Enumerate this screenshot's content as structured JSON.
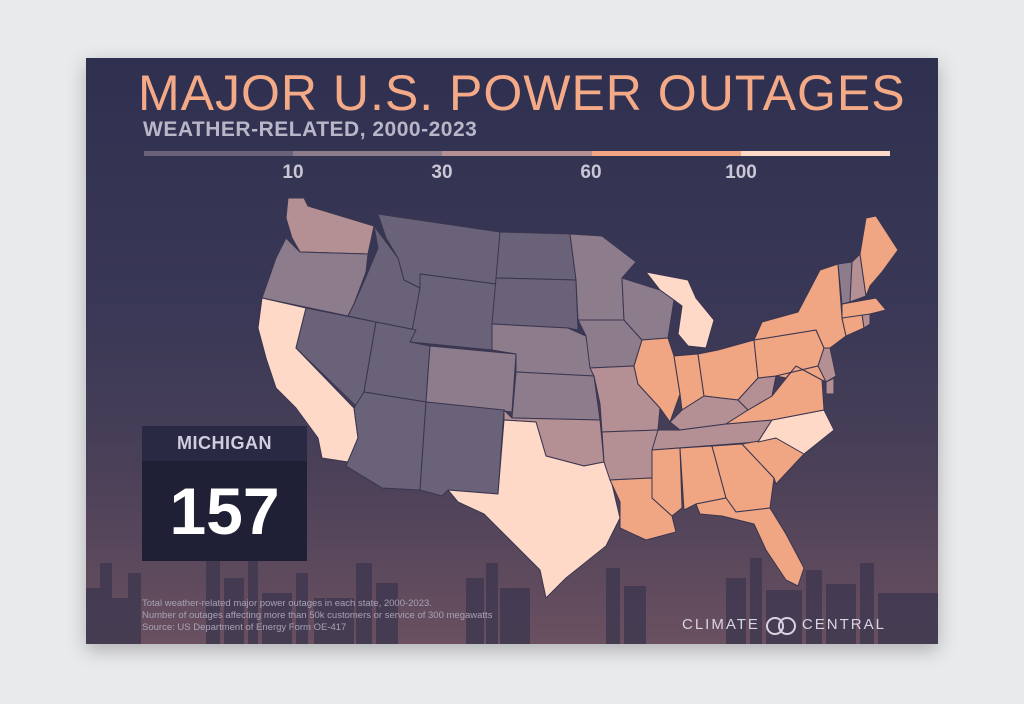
{
  "title": "MAJOR U.S. POWER OUTAGES",
  "subtitle": "WEATHER-RELATED, 2000-2023",
  "legend": {
    "ticks": [
      "10",
      "30",
      "60",
      "100"
    ],
    "colors": [
      "#6a6278",
      "#8d7c8c",
      "#b48f93",
      "#f0a583",
      "#ffd9c8"
    ]
  },
  "callout": {
    "state": "MICHIGAN",
    "value": "157"
  },
  "footnotes": [
    "Total weather-related major power outages in each state, 2000-2023.",
    "Number of outages affecting more than 50k customers or service of 300 megawatts",
    "Source: US Department of Energy Form OE-417"
  ],
  "brand": {
    "left": "CLIMATE",
    "right": "CENTRAL"
  },
  "states": [
    {
      "id": "WA",
      "tier": 3
    },
    {
      "id": "OR",
      "tier": 2
    },
    {
      "id": "CA",
      "tier": 5
    },
    {
      "id": "NV",
      "tier": 1
    },
    {
      "id": "ID",
      "tier": 1
    },
    {
      "id": "MT",
      "tier": 1
    },
    {
      "id": "WY",
      "tier": 1
    },
    {
      "id": "UT",
      "tier": 1
    },
    {
      "id": "AZ",
      "tier": 1
    },
    {
      "id": "CO",
      "tier": 2
    },
    {
      "id": "NM",
      "tier": 1
    },
    {
      "id": "ND",
      "tier": 1
    },
    {
      "id": "SD",
      "tier": 1
    },
    {
      "id": "NE",
      "tier": 2
    },
    {
      "id": "KS",
      "tier": 2
    },
    {
      "id": "OK",
      "tier": 3
    },
    {
      "id": "TX",
      "tier": 5
    },
    {
      "id": "MN",
      "tier": 2
    },
    {
      "id": "IA",
      "tier": 2
    },
    {
      "id": "MO",
      "tier": 3
    },
    {
      "id": "AR",
      "tier": 3
    },
    {
      "id": "LA",
      "tier": 4
    },
    {
      "id": "WI",
      "tier": 2
    },
    {
      "id": "MI",
      "tier": 5
    },
    {
      "id": "IL",
      "tier": 4
    },
    {
      "id": "IN",
      "tier": 4
    },
    {
      "id": "OH",
      "tier": 4
    },
    {
      "id": "KY",
      "tier": 3
    },
    {
      "id": "TN",
      "tier": 3
    },
    {
      "id": "MS",
      "tier": 4
    },
    {
      "id": "AL",
      "tier": 4
    },
    {
      "id": "GA",
      "tier": 4
    },
    {
      "id": "FL",
      "tier": 4
    },
    {
      "id": "SC",
      "tier": 4
    },
    {
      "id": "NC",
      "tier": 5
    },
    {
      "id": "VA",
      "tier": 4
    },
    {
      "id": "WV",
      "tier": 3
    },
    {
      "id": "PA",
      "tier": 4
    },
    {
      "id": "NY",
      "tier": 4
    },
    {
      "id": "NJ",
      "tier": 3
    },
    {
      "id": "MD",
      "tier": 4
    },
    {
      "id": "DE",
      "tier": 3
    },
    {
      "id": "CT",
      "tier": 4
    },
    {
      "id": "RI",
      "tier": 3
    },
    {
      "id": "MA",
      "tier": 4
    },
    {
      "id": "VT",
      "tier": 2
    },
    {
      "id": "NH",
      "tier": 3
    },
    {
      "id": "ME",
      "tier": 4
    }
  ]
}
